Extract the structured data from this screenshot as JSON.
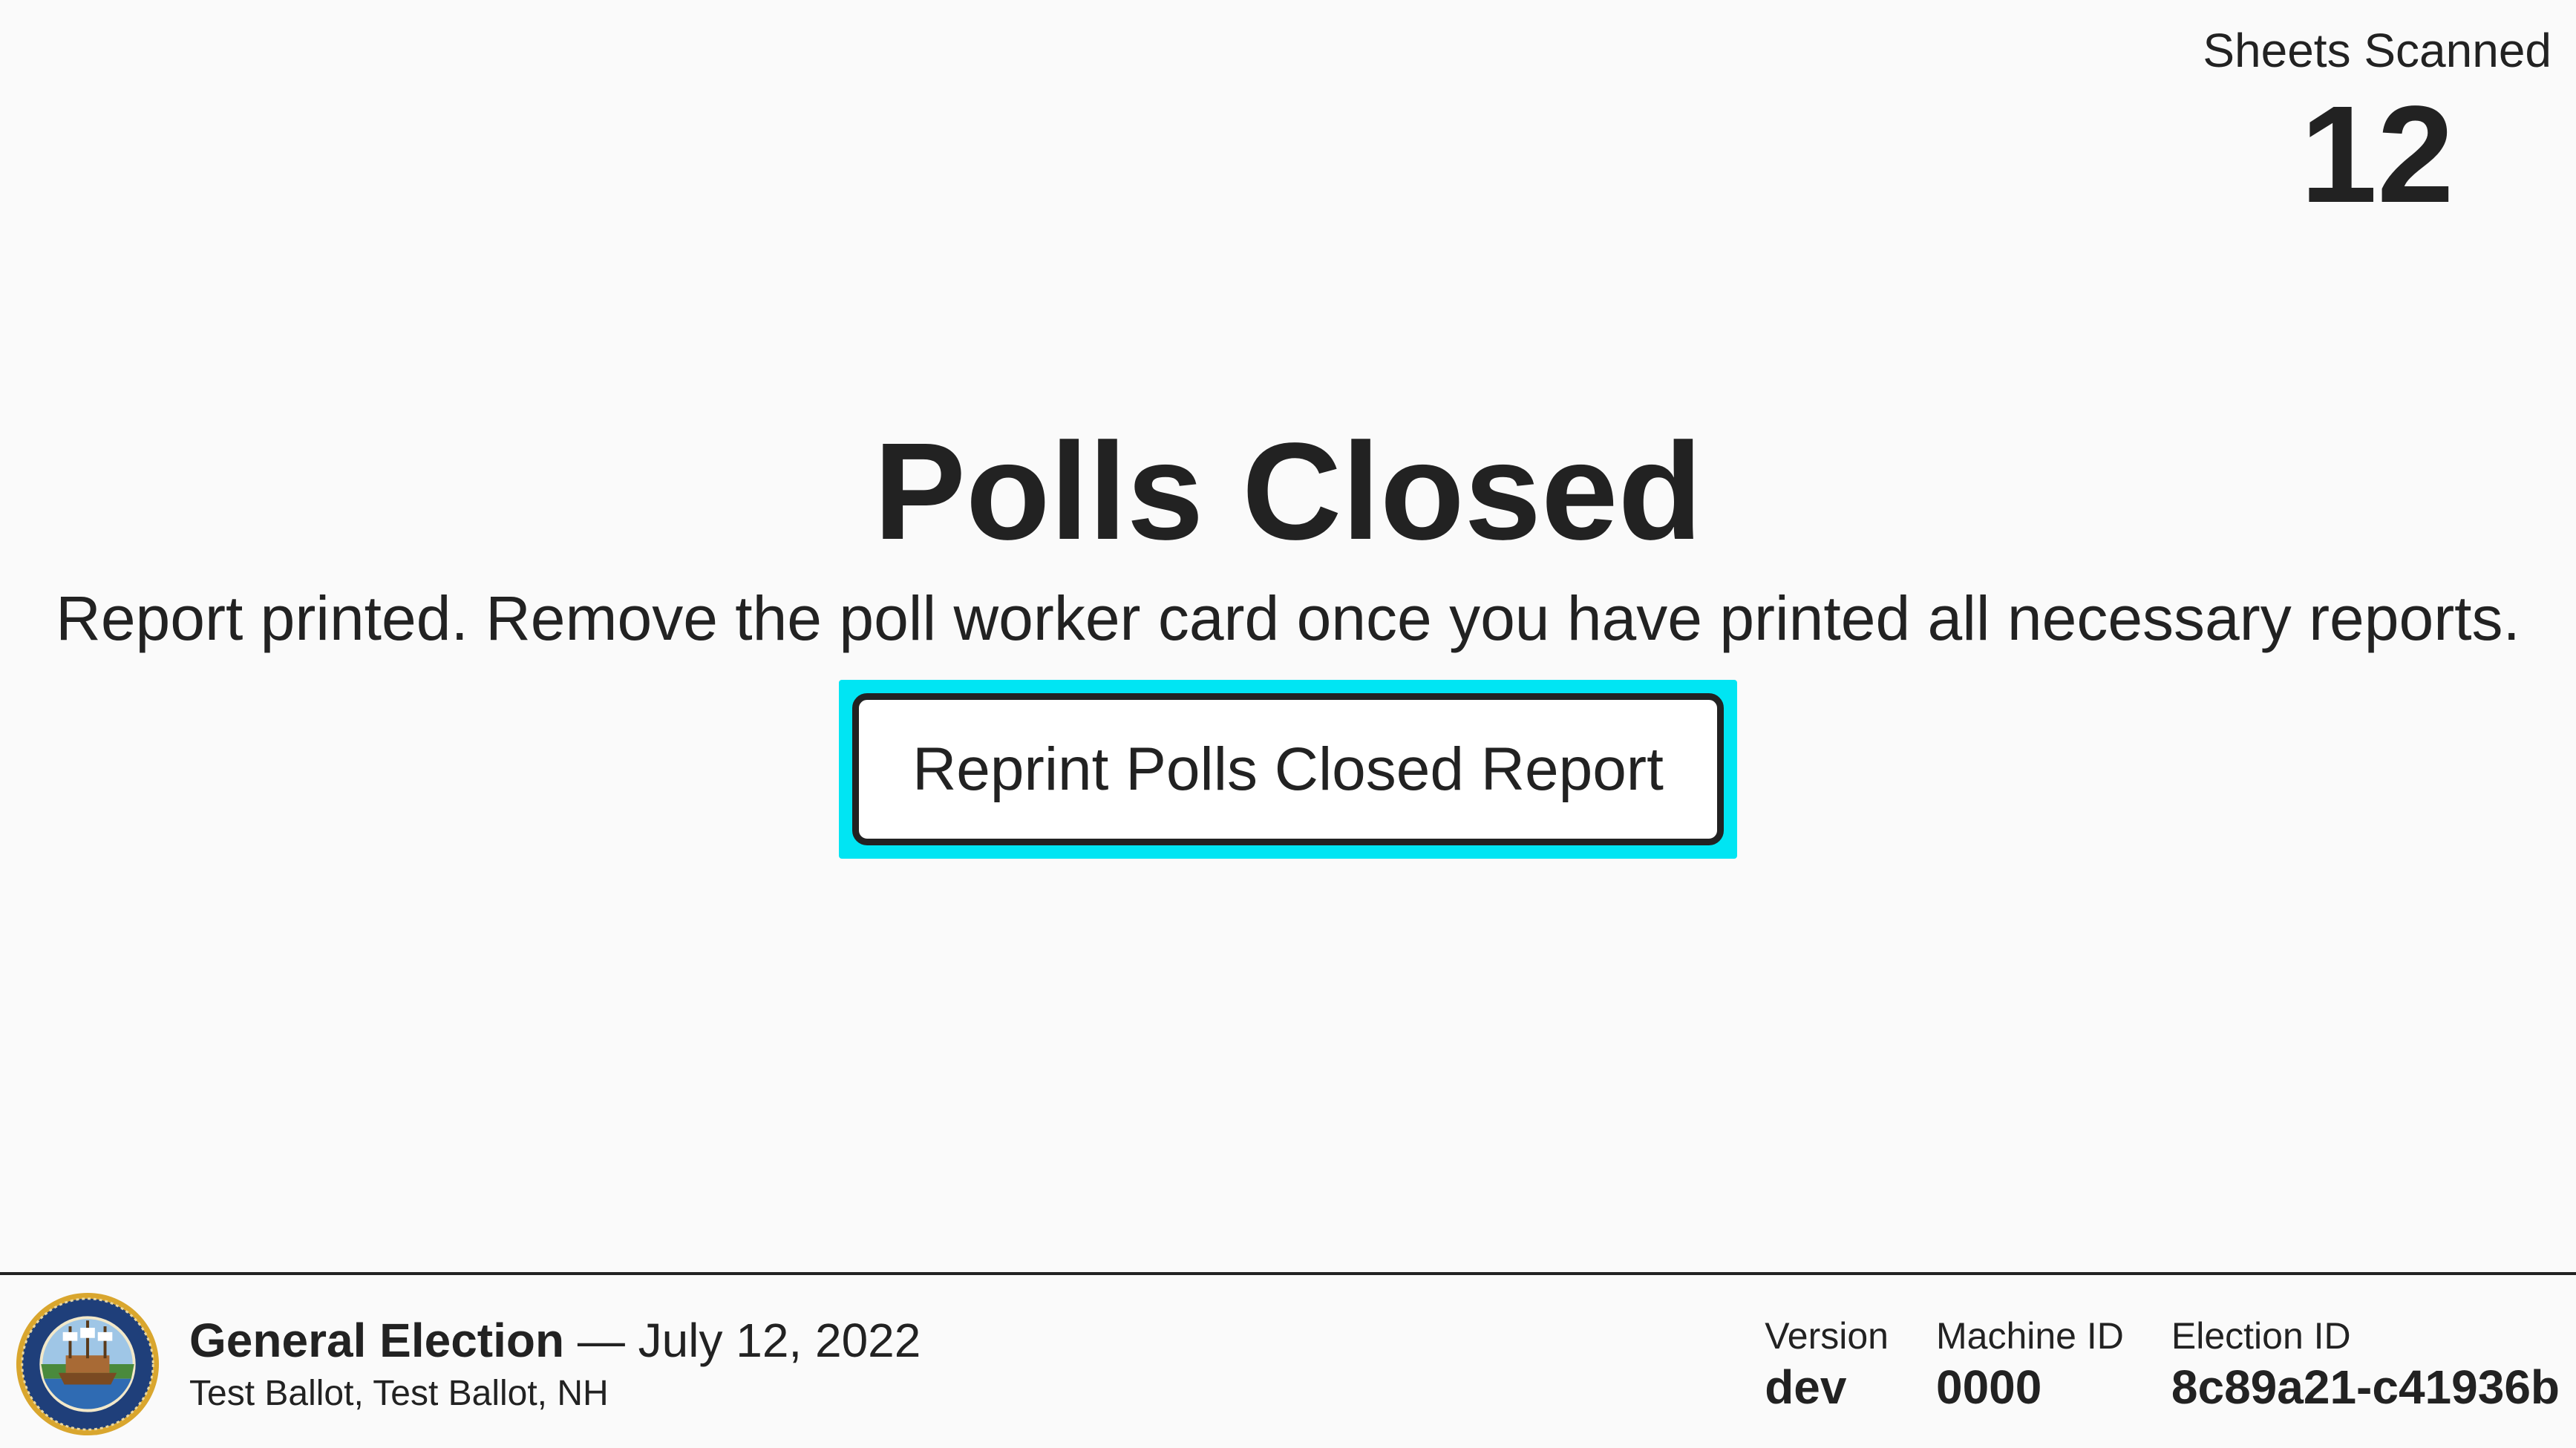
{
  "counter": {
    "label": "Sheets Scanned",
    "value": "12"
  },
  "main": {
    "title": "Polls Closed",
    "message": "Report printed. Remove the poll worker card once you have printed all necessary reports.",
    "reprint_button_label": "Reprint Polls Closed Report"
  },
  "footer": {
    "election_title": "General Election",
    "separator": "—",
    "election_date": "July 12, 2022",
    "ballot_info": "Test Ballot, Test Ballot, NH",
    "version_label": "Version",
    "version_value": "dev",
    "machine_id_label": "Machine ID",
    "machine_id_value": "0000",
    "election_id_label": "Election ID",
    "election_id_value": "8c89a21-c41936b",
    "seal_icon": "state-seal-icon"
  },
  "colors": {
    "background": "#fafafa",
    "text": "#222222",
    "focus_ring": "#00e5f3",
    "button_background": "#ffffff"
  }
}
